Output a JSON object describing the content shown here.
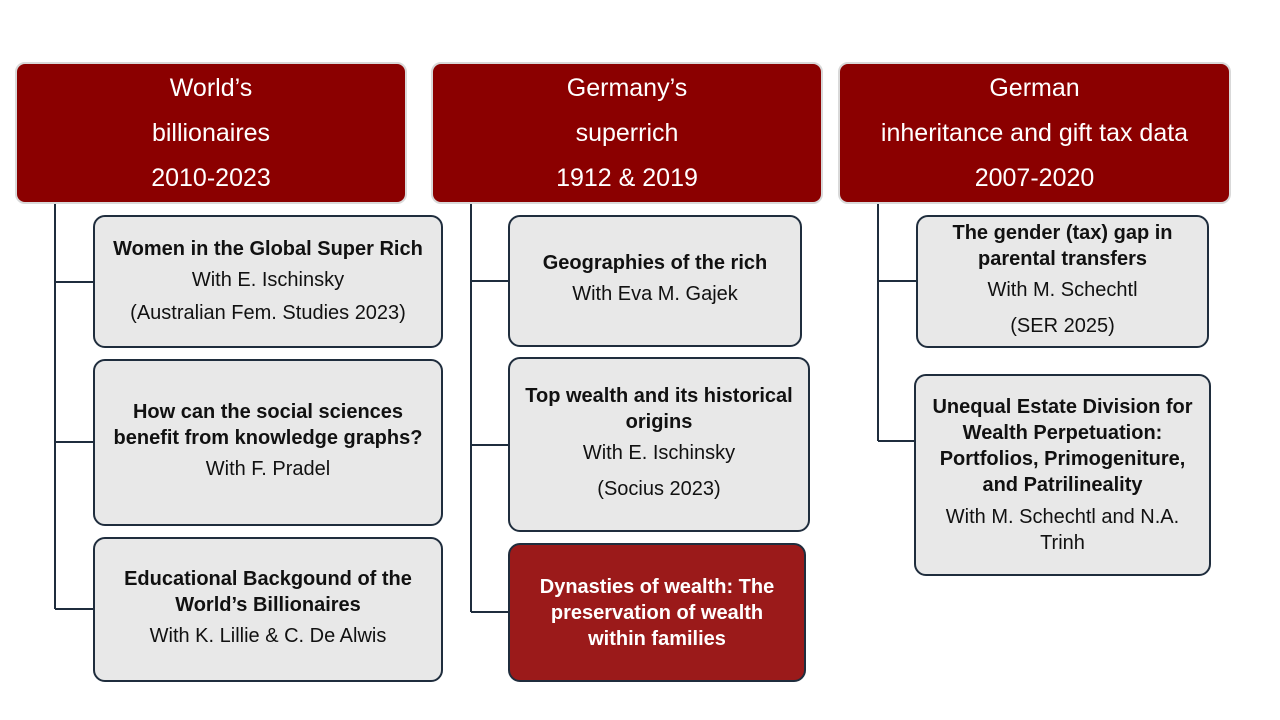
{
  "columns": [
    {
      "header": [
        "World’s",
        "billionaires",
        "2010-2023"
      ],
      "cards": [
        {
          "title": "Women in the Global Super Rich",
          "lines": [
            "With E. Ischinsky",
            "(Australian Fem. Studies 2023)"
          ]
        },
        {
          "title": "How can the social sciences benefit from knowledge graphs?",
          "lines": [
            "With F. Pradel"
          ]
        },
        {
          "title": "Educational Backgound of the World’s Billionaires",
          "lines": [
            "With K. Lillie & C. De Alwis"
          ]
        }
      ]
    },
    {
      "header": [
        "Germany’s",
        "superrich",
        "1912 & 2019"
      ],
      "cards": [
        {
          "title": "Geographies of the rich",
          "lines": [
            "With Eva M. Gajek"
          ]
        },
        {
          "title": "Top wealth and its historical origins",
          "lines": [
            "With E. Ischinsky",
            "(Socius 2023)"
          ]
        },
        {
          "title": "Dynasties of wealth:  The preservation of wealth within families",
          "lines": []
        }
      ]
    },
    {
      "header": [
        "German",
        "inheritance and gift tax data",
        "2007-2020"
      ],
      "cards": [
        {
          "title": "The gender (tax) gap in parental transfers",
          "lines": [
            "With M. Schechtl",
            "(SER 2025)"
          ]
        },
        {
          "title": "Unequal Estate Division for Wealth Perpetuation: Portfolios, Primogeniture, and Patrilineality",
          "lines": [
            "With M. Schechtl and N.A. Trinh"
          ]
        }
      ]
    }
  ],
  "colors": {
    "header_bg": "#8b0000",
    "card_bg": "#e8e8e8",
    "highlight_bg": "#9b1a1a",
    "connector": "#1f2d3d"
  }
}
